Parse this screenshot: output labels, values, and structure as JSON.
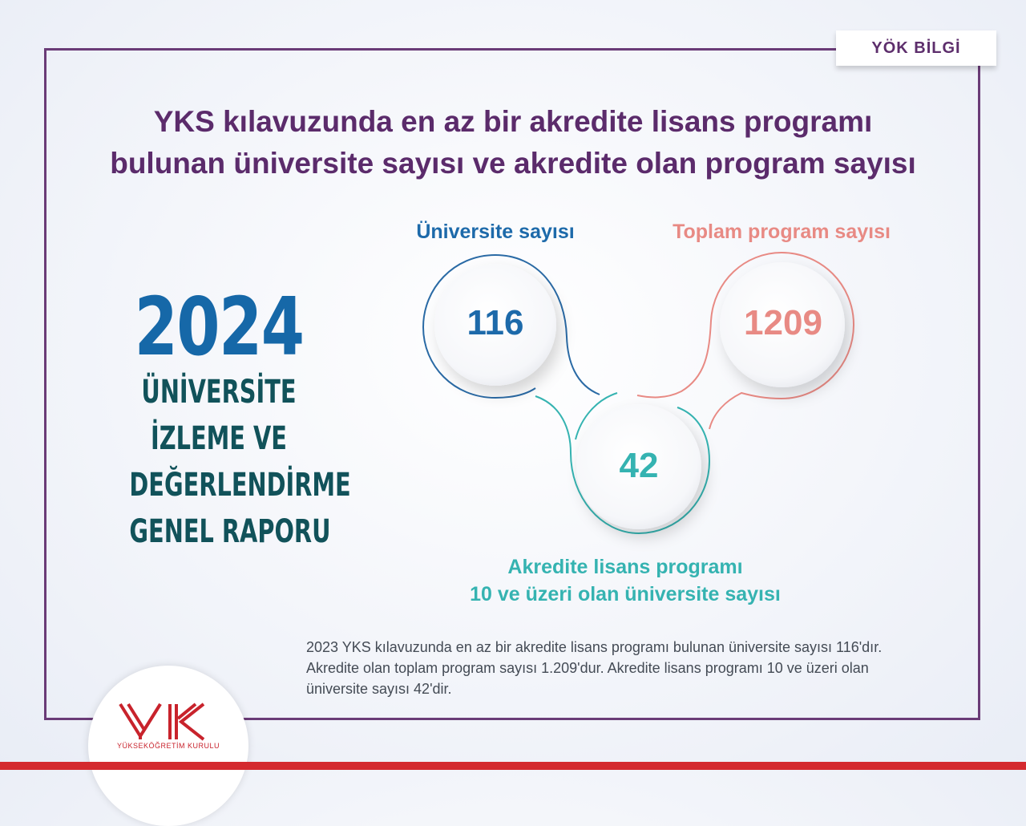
{
  "tag": "YÖK BİLGİ",
  "title": {
    "line1": "YKS kılavuzunda en az bir akredite lisans programı",
    "line2": "bulunan üniversite sayısı ve akredite olan program sayısı"
  },
  "report": {
    "year": "2024",
    "lines": [
      "ÜNİVERSİTE",
      "İZLEME VE",
      "DEĞERLENDİRME",
      "GENEL RAPORU"
    ]
  },
  "stats": {
    "universities": {
      "label": "Üniversite sayısı",
      "value": "116",
      "color": "#1d6aaa"
    },
    "programs": {
      "label": "Toplam program sayısı",
      "value": "1209",
      "color": "#e88a84"
    },
    "accredited10": {
      "label_line1": "Akredite lisans programı",
      "label_line2": "10 ve üzeri olan üniversite sayısı",
      "value": "42",
      "color": "#35b3b1"
    }
  },
  "note": {
    "line1": "2023 YKS kılavuzunda en az bir akredite lisans programı bulunan üniversite sayısı 116'dır.",
    "line2": "Akredite olan toplam program sayısı 1.209'dur. Akredite lisans programı 10 ve üzeri olan",
    "line3": "üniversite sayısı 42'dir."
  },
  "logo": {
    "text": "YÜKSEKÖĞRETİM KURULU",
    "color": "#c8232c"
  },
  "colors": {
    "frame": "#6a3b77",
    "title": "#5b2b6b",
    "year": "#1668a8",
    "report": "#11525a",
    "bottom_bar": "#d42a2f"
  }
}
